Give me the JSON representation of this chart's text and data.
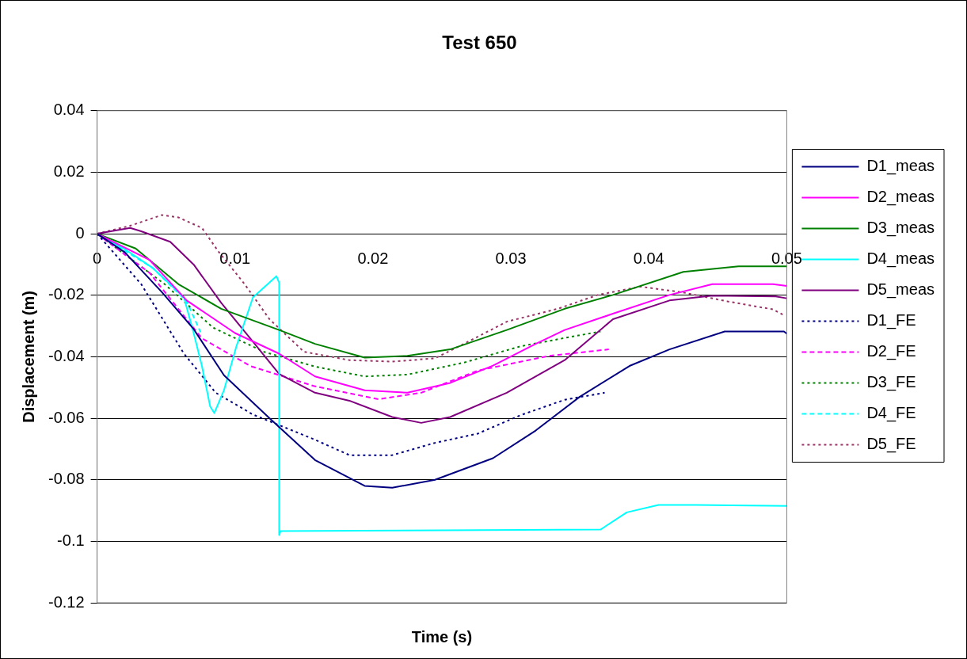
{
  "chart_data": {
    "type": "line",
    "title": "Test 650",
    "xlabel": "Time (s)",
    "ylabel": "Displacement (m)",
    "xlim": [
      0,
      0.05
    ],
    "xticks": [
      0,
      0.01,
      0.02,
      0.03,
      0.04,
      0.05
    ],
    "ylim": [
      -0.12,
      0.04
    ],
    "yticks": [
      -0.12,
      -0.1,
      -0.08,
      -0.06,
      -0.04,
      -0.02,
      0,
      0.02,
      0.04
    ],
    "grid": "y",
    "legend": "right",
    "marker": "none",
    "series": [
      {
        "name": "D1_meas",
        "color": "#000080",
        "line_style": "solid",
        "x": [
          0,
          0.002,
          0.0047,
          0.007,
          0.0092,
          0.0125,
          0.0158,
          0.0194,
          0.0214,
          0.0245,
          0.0287,
          0.0318,
          0.035,
          0.0386,
          0.0415,
          0.0455,
          0.0498,
          0.05
        ],
        "values": [
          0,
          -0.006,
          -0.019,
          -0.031,
          -0.046,
          -0.06,
          -0.0736,
          -0.082,
          -0.0826,
          -0.08,
          -0.073,
          -0.064,
          -0.053,
          -0.043,
          -0.0376,
          -0.0318,
          -0.0318,
          -0.0325
        ]
      },
      {
        "name": "D2_meas",
        "color": "#ff00ff",
        "line_style": "solid",
        "x": [
          0,
          0.0038,
          0.0065,
          0.01,
          0.0132,
          0.0158,
          0.0194,
          0.0225,
          0.0256,
          0.0287,
          0.0318,
          0.0339,
          0.0374,
          0.0415,
          0.0446,
          0.049,
          0.05
        ],
        "values": [
          0,
          -0.0085,
          -0.0217,
          -0.0323,
          -0.039,
          -0.0464,
          -0.0509,
          -0.0517,
          -0.0485,
          -0.0429,
          -0.0358,
          -0.0313,
          -0.026,
          -0.0199,
          -0.0164,
          -0.0164,
          -0.017
        ]
      },
      {
        "name": "D3_meas",
        "color": "#008000",
        "line_style": "solid",
        "x": [
          0,
          0.0028,
          0.0059,
          0.009,
          0.0132,
          0.0158,
          0.0194,
          0.0225,
          0.0256,
          0.0297,
          0.0339,
          0.0374,
          0.0425,
          0.0465,
          0.05
        ],
        "values": [
          0,
          -0.0048,
          -0.0164,
          -0.0244,
          -0.0313,
          -0.0358,
          -0.0403,
          -0.0397,
          -0.0376,
          -0.0313,
          -0.0244,
          -0.0199,
          -0.0124,
          -0.0106,
          -0.0106
        ]
      },
      {
        "name": "D4_meas",
        "color": "#00ffff",
        "line_style": "solid",
        "x": [
          0,
          0.002,
          0.004,
          0.0063,
          0.007,
          0.0076,
          0.0082,
          0.0085,
          0.0092,
          0.0101,
          0.0113,
          0.013,
          0.0132,
          0.0132,
          0.0133,
          0.0365,
          0.0384,
          0.0407,
          0.0434,
          0.05
        ],
        "values": [
          0,
          -0.005,
          -0.011,
          -0.0207,
          -0.0323,
          -0.043,
          -0.0562,
          -0.0583,
          -0.0509,
          -0.0366,
          -0.0207,
          -0.0138,
          -0.0159,
          -0.098,
          -0.0967,
          -0.0962,
          -0.0906,
          -0.0882,
          -0.0882,
          -0.0885
        ]
      },
      {
        "name": "D5_meas",
        "color": "#800080",
        "line_style": "solid",
        "x": [
          0,
          0.0024,
          0.0032,
          0.0053,
          0.007,
          0.009,
          0.0111,
          0.0132,
          0.0158,
          0.0183,
          0.0214,
          0.0235,
          0.0256,
          0.0297,
          0.0339,
          0.0374,
          0.0415,
          0.0446,
          0.0492,
          0.05
        ],
        "values": [
          0,
          0.0019,
          0.0008,
          -0.0026,
          -0.01,
          -0.0225,
          -0.034,
          -0.0456,
          -0.0517,
          -0.0543,
          -0.0596,
          -0.0615,
          -0.0596,
          -0.0517,
          -0.0411,
          -0.0278,
          -0.0217,
          -0.0201,
          -0.0204,
          -0.021
        ]
      },
      {
        "name": "D1_FE",
        "color": "#000080",
        "line_style": "dotted",
        "x": [
          0,
          0.0032,
          0.0063,
          0.0086,
          0.0113,
          0.0157,
          0.0183,
          0.0214,
          0.0245,
          0.0276,
          0.0307,
          0.0339,
          0.0368
        ],
        "values": [
          0,
          -0.0164,
          -0.039,
          -0.0517,
          -0.0588,
          -0.0668,
          -0.072,
          -0.072,
          -0.068,
          -0.065,
          -0.059,
          -0.054,
          -0.0517
        ]
      },
      {
        "name": "D2_FE",
        "color": "#ff00ff",
        "line_style": "dashed",
        "x": [
          0,
          0.0038,
          0.0076,
          0.0111,
          0.0157,
          0.0204,
          0.0235,
          0.0276,
          0.0328,
          0.0371
        ],
        "values": [
          0,
          -0.0127,
          -0.034,
          -0.043,
          -0.0495,
          -0.0538,
          -0.0517,
          -0.0445,
          -0.0397,
          -0.0376
        ]
      },
      {
        "name": "D3_FE",
        "color": "#008000",
        "line_style": "dotted",
        "x": [
          0,
          0.0049,
          0.0084,
          0.0121,
          0.0158,
          0.0194,
          0.0225,
          0.0266,
          0.0307,
          0.0339,
          0.0365
        ],
        "values": [
          0,
          -0.0164,
          -0.0305,
          -0.0384,
          -0.0432,
          -0.0464,
          -0.0458,
          -0.0419,
          -0.0366,
          -0.0339,
          -0.0318
        ]
      },
      {
        "name": "D4_FE",
        "color": "#00ffff",
        "line_style": "dashed",
        "x": [
          0,
          0.004,
          0.0065,
          0.0075
        ],
        "values": [
          0,
          -0.011,
          -0.022,
          -0.032
        ]
      },
      {
        "name": "D5_FE",
        "color": "#993366",
        "line_style": "dotted",
        "x": [
          0,
          0.0024,
          0.0047,
          0.0059,
          0.0076,
          0.0088,
          0.0107,
          0.0125,
          0.015,
          0.0183,
          0.0214,
          0.0245,
          0.0266,
          0.0297,
          0.0334,
          0.0363,
          0.0394,
          0.0425,
          0.0457,
          0.049,
          0.0498
        ],
        "values": [
          0,
          0.0026,
          0.0061,
          0.0053,
          0.0019,
          -0.0058,
          -0.0164,
          -0.0278,
          -0.0384,
          -0.0411,
          -0.0416,
          -0.0405,
          -0.0358,
          -0.0286,
          -0.0244,
          -0.0199,
          -0.0172,
          -0.0191,
          -0.022,
          -0.0246,
          -0.0265
        ]
      }
    ]
  }
}
